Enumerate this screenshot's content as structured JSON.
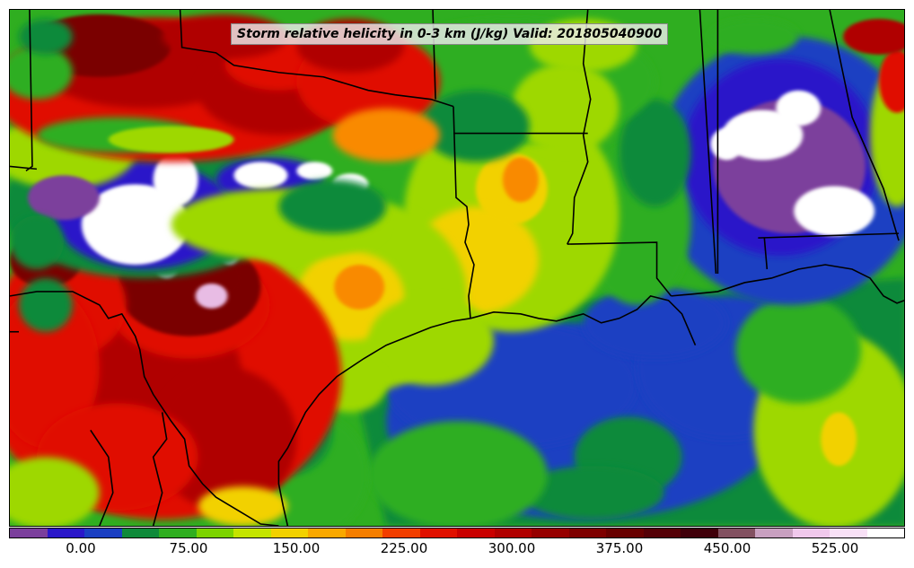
{
  "title": "Storm relative helicity in 0-3 km (J/kg) Valid: 201805040900",
  "colorbar": {
    "colors": [
      "#7b3f9c",
      "#2a17c9",
      "#1a3fc2",
      "#0f8a3a",
      "#2fae20",
      "#7cd300",
      "#c4e400",
      "#f2d100",
      "#f9a800",
      "#f57e00",
      "#f23e00",
      "#e01000",
      "#c90000",
      "#b00000",
      "#960000",
      "#7e0000",
      "#680000",
      "#540006",
      "#40000a",
      "#825060",
      "#c8a0c0",
      "#f0c8ec",
      "#f8e0f6",
      "#ffffff"
    ],
    "tick_labels": [
      "0.00",
      "75.00",
      "150.00",
      "225.00",
      "300.00",
      "375.00",
      "450.00",
      "525.00"
    ]
  },
  "map": {
    "legend_colors": {
      "white": "#ffffff",
      "purple": "#7b3f9c",
      "blue": "#2a17c9",
      "navy": "#1a3fc2",
      "green": "#0f8a3a",
      "lgreen": "#2fae20",
      "lime": "#9ed800",
      "yellow": "#f2d100",
      "orange": "#f98a00",
      "red": "#e01000",
      "dred": "#b00000",
      "maroon": "#7a0000",
      "pink": "#e8bce4"
    }
  }
}
